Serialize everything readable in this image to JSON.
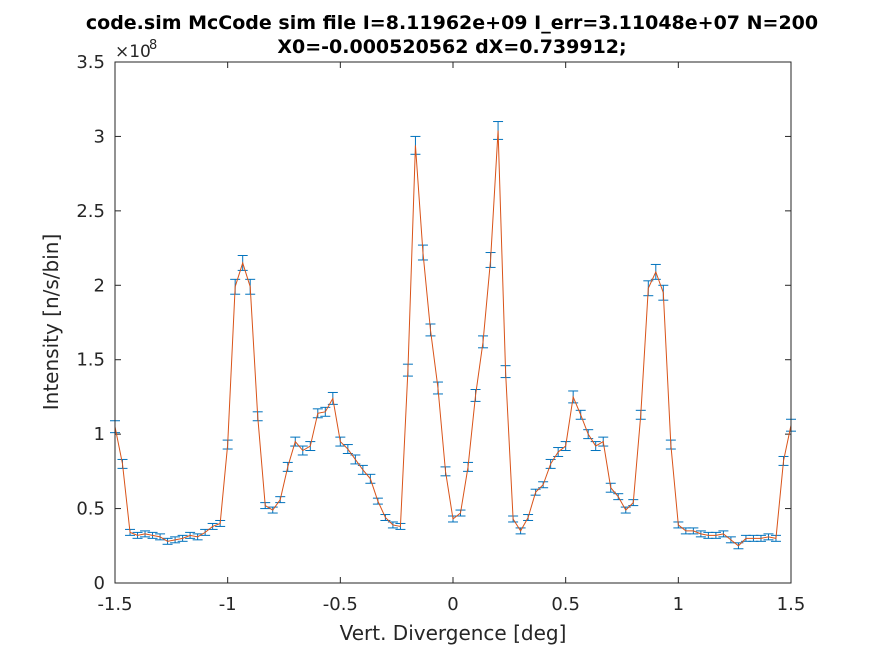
{
  "chart_data": {
    "type": "line",
    "title_line1": "code.sim McCode sim file I=8.11962e+09 I_err=3.11048e+07 N=200",
    "title_line2": "X0=-0.000520562 dX=0.739912;",
    "xlabel": "Vert. Divergence [deg]",
    "ylabel": "Intensity [n/s/bin]",
    "y_exponent_base": "×10",
    "y_exponent_power": "8",
    "xlim": [
      -1.5,
      1.5
    ],
    "ylim": [
      0,
      3.5
    ],
    "x_ticks": [
      -1.5,
      -1,
      -0.5,
      0,
      0.5,
      1,
      1.5
    ],
    "x_tick_labels": [
      "-1.5",
      "-1",
      "-0.5",
      "0",
      "0.5",
      "1",
      "1.5"
    ],
    "y_ticks": [
      0,
      0.5,
      1,
      1.5,
      2,
      2.5,
      3,
      3.5
    ],
    "y_tick_labels": [
      "0",
      "0.5",
      "1",
      "1.5",
      "2",
      "2.5",
      "3",
      "3.5"
    ],
    "line_color": "#d95319",
    "errorbar_color": "#0072bd",
    "series": [
      {
        "x": [
          -1.5,
          -1.4667,
          -1.4333,
          -1.4,
          -1.3667,
          -1.3333,
          -1.3,
          -1.2667,
          -1.2333,
          -1.2,
          -1.1667,
          -1.1333,
          -1.1,
          -1.0667,
          -1.0333,
          -1.0,
          -0.9667,
          -0.9333,
          -0.9,
          -0.8667,
          -0.8333,
          -0.8,
          -0.7667,
          -0.7333,
          -0.7,
          -0.6667,
          -0.6333,
          -0.6,
          -0.5667,
          -0.5333,
          -0.5,
          -0.4667,
          -0.4333,
          -0.4,
          -0.3667,
          -0.3333,
          -0.3,
          -0.2667,
          -0.2333,
          -0.2,
          -0.1667,
          -0.1333,
          -0.1,
          -0.0667,
          -0.0333,
          0.0,
          0.0333,
          0.0667,
          0.1,
          0.1333,
          0.1667,
          0.2,
          0.2333,
          0.2667,
          0.3,
          0.3333,
          0.3667,
          0.4,
          0.4333,
          0.4667,
          0.5,
          0.5333,
          0.5667,
          0.6,
          0.6333,
          0.6667,
          0.7,
          0.7333,
          0.7667,
          0.8,
          0.8333,
          0.8667,
          0.9,
          0.9333,
          0.9667,
          1.0,
          1.0333,
          1.0667,
          1.1,
          1.1333,
          1.1667,
          1.2,
          1.2333,
          1.2667,
          1.3,
          1.3333,
          1.3667,
          1.4,
          1.4333,
          1.4667,
          1.5
        ],
        "y": [
          1.05,
          0.8,
          0.34,
          0.32,
          0.33,
          0.32,
          0.31,
          0.28,
          0.29,
          0.3,
          0.32,
          0.31,
          0.34,
          0.38,
          0.4,
          0.93,
          1.99,
          2.15,
          1.99,
          1.12,
          0.52,
          0.49,
          0.56,
          0.78,
          0.95,
          0.89,
          0.92,
          1.14,
          1.15,
          1.24,
          0.95,
          0.9,
          0.83,
          0.76,
          0.7,
          0.55,
          0.44,
          0.39,
          0.38,
          1.43,
          2.94,
          2.22,
          1.7,
          1.31,
          0.75,
          0.43,
          0.47,
          0.78,
          1.26,
          1.62,
          2.17,
          3.04,
          1.42,
          0.43,
          0.35,
          0.44,
          0.61,
          0.66,
          0.8,
          0.88,
          0.92,
          1.25,
          1.13,
          1.0,
          0.92,
          0.95,
          0.64,
          0.58,
          0.49,
          0.54,
          1.13,
          1.98,
          2.09,
          1.95,
          0.93,
          0.39,
          0.35,
          0.35,
          0.33,
          0.32,
          0.32,
          0.33,
          0.29,
          0.25,
          0.3,
          0.3,
          0.3,
          0.31,
          0.3,
          0.82,
          1.06
        ],
        "err": [
          0.04,
          0.03,
          0.02,
          0.02,
          0.02,
          0.02,
          0.02,
          0.02,
          0.02,
          0.02,
          0.02,
          0.02,
          0.02,
          0.02,
          0.02,
          0.03,
          0.05,
          0.05,
          0.05,
          0.03,
          0.02,
          0.02,
          0.02,
          0.03,
          0.03,
          0.03,
          0.03,
          0.03,
          0.03,
          0.04,
          0.03,
          0.03,
          0.03,
          0.03,
          0.03,
          0.02,
          0.02,
          0.02,
          0.02,
          0.04,
          0.06,
          0.05,
          0.04,
          0.04,
          0.03,
          0.02,
          0.02,
          0.03,
          0.04,
          0.04,
          0.05,
          0.06,
          0.04,
          0.02,
          0.02,
          0.02,
          0.02,
          0.02,
          0.03,
          0.03,
          0.03,
          0.04,
          0.03,
          0.03,
          0.03,
          0.03,
          0.03,
          0.02,
          0.02,
          0.02,
          0.03,
          0.05,
          0.05,
          0.05,
          0.03,
          0.02,
          0.02,
          0.02,
          0.02,
          0.02,
          0.02,
          0.02,
          0.02,
          0.02,
          0.02,
          0.02,
          0.02,
          0.02,
          0.02,
          0.03,
          0.04
        ]
      }
    ]
  }
}
